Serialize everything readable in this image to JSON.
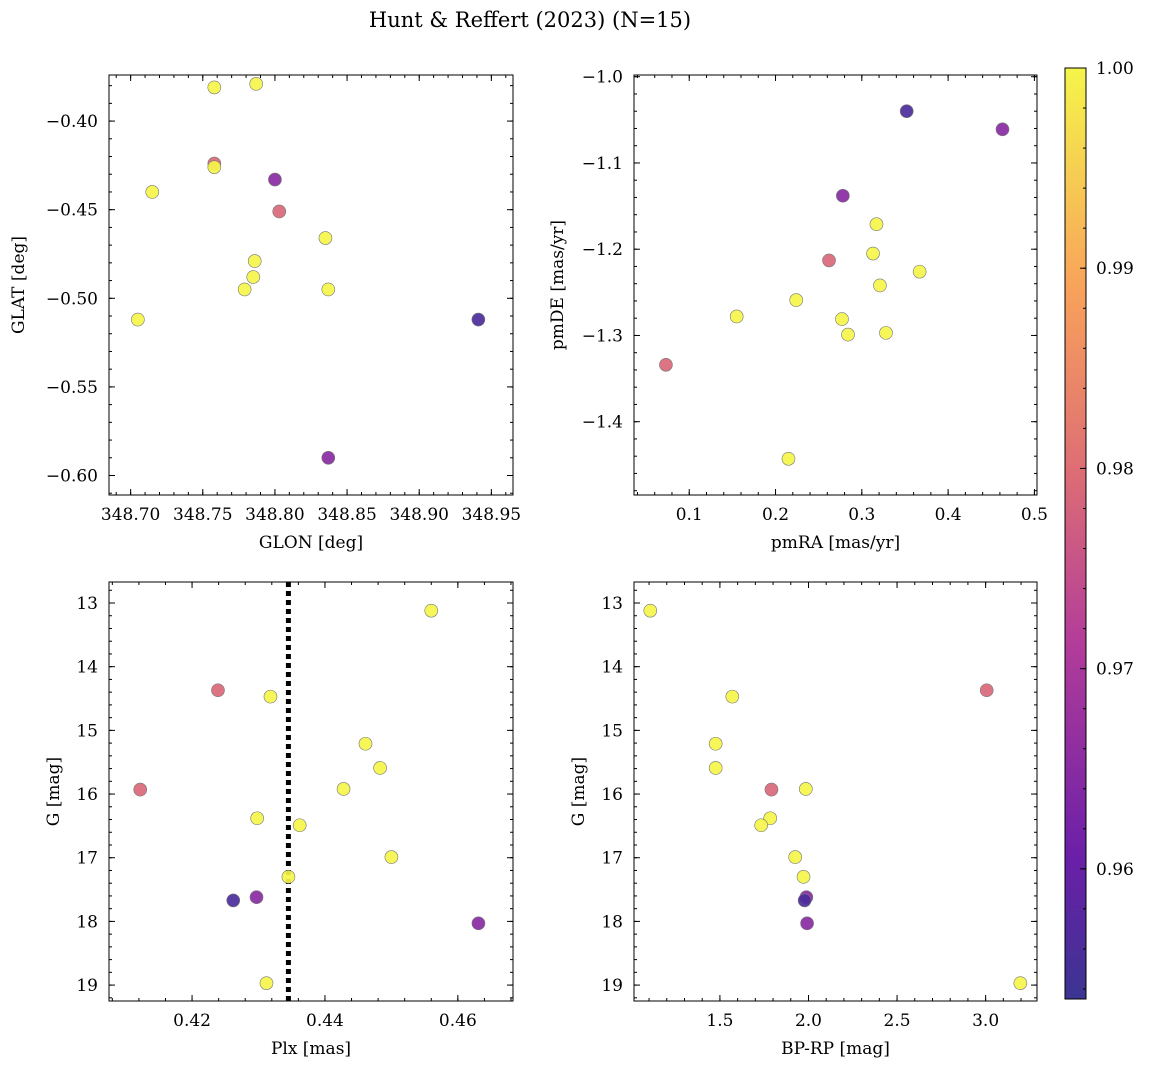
{
  "figure_title": "Hunt & Reffert (2023) (N=15)",
  "colorbar": {
    "min": 0.9535,
    "max": 1.0,
    "ticks": [
      0.96,
      0.97,
      0.98,
      0.99,
      1.0
    ],
    "tick_labels": [
      "0.96",
      "0.97",
      "0.98",
      "0.99",
      "1.00"
    ]
  },
  "reference_line": {
    "panel": "plx_g",
    "x": 0.4345,
    "style": "dotted"
  },
  "chart_data": [
    {
      "id": "glon_glat",
      "type": "scatter",
      "xlabel": "GLON [deg]",
      "ylabel": "GLAT [deg]",
      "xlim": [
        348.685,
        348.965
      ],
      "ylim": [
        -0.611,
        -0.374
      ],
      "y_inverted": false,
      "xticks": [
        348.7,
        348.75,
        348.8,
        348.85,
        348.9,
        348.95
      ],
      "xtick_labels": [
        "348.70",
        "348.75",
        "348.80",
        "348.85",
        "348.90",
        "348.95"
      ],
      "yticks": [
        -0.4,
        -0.45,
        -0.5,
        -0.55,
        -0.6
      ],
      "ytick_labels": [
        "−0.40",
        "−0.45",
        "−0.50",
        "−0.55",
        "−0.60"
      ],
      "points": [
        {
          "x": 348.758,
          "y": -0.381,
          "c": 1.0
        },
        {
          "x": 348.787,
          "y": -0.379,
          "c": 1.0
        },
        {
          "x": 348.758,
          "y": -0.424,
          "c": 0.979
        },
        {
          "x": 348.758,
          "y": -0.426,
          "c": 1.0
        },
        {
          "x": 348.715,
          "y": -0.44,
          "c": 1.0
        },
        {
          "x": 348.8,
          "y": -0.433,
          "c": 0.965
        },
        {
          "x": 348.803,
          "y": -0.451,
          "c": 0.979
        },
        {
          "x": 348.835,
          "y": -0.466,
          "c": 1.0
        },
        {
          "x": 348.786,
          "y": -0.479,
          "c": 1.0
        },
        {
          "x": 348.785,
          "y": -0.488,
          "c": 1.0
        },
        {
          "x": 348.779,
          "y": -0.495,
          "c": 1.0
        },
        {
          "x": 348.837,
          "y": -0.495,
          "c": 1.0
        },
        {
          "x": 348.705,
          "y": -0.512,
          "c": 1.0
        },
        {
          "x": 348.941,
          "y": -0.512,
          "c": 0.956
        },
        {
          "x": 348.837,
          "y": -0.59,
          "c": 0.965
        }
      ]
    },
    {
      "id": "pmra_pmde",
      "type": "scatter",
      "xlabel": "pmRA [mas/yr]",
      "ylabel": "pmDE [mas/yr]",
      "xlim": [
        0.036,
        0.503
      ],
      "ylim": [
        -1.485,
        -0.998
      ],
      "y_inverted": false,
      "xticks": [
        0.1,
        0.2,
        0.3,
        0.4,
        0.5
      ],
      "xtick_labels": [
        "0.1",
        "0.2",
        "0.3",
        "0.4",
        "0.5"
      ],
      "yticks": [
        -1.0,
        -1.1,
        -1.2,
        -1.3,
        -1.4
      ],
      "ytick_labels": [
        "−1.0",
        "−1.1",
        "−1.2",
        "−1.3",
        "−1.4"
      ],
      "points": [
        {
          "x": 0.352,
          "y": -1.04,
          "c": 0.956
        },
        {
          "x": 0.463,
          "y": -1.061,
          "c": 0.965
        },
        {
          "x": 0.278,
          "y": -1.138,
          "c": 0.965
        },
        {
          "x": 0.317,
          "y": -1.171,
          "c": 1.0
        },
        {
          "x": 0.313,
          "y": -1.205,
          "c": 1.0
        },
        {
          "x": 0.262,
          "y": -1.213,
          "c": 0.979
        },
        {
          "x": 0.367,
          "y": -1.226,
          "c": 1.0
        },
        {
          "x": 0.321,
          "y": -1.242,
          "c": 1.0
        },
        {
          "x": 0.224,
          "y": -1.259,
          "c": 1.0
        },
        {
          "x": 0.155,
          "y": -1.278,
          "c": 1.0
        },
        {
          "x": 0.277,
          "y": -1.281,
          "c": 1.0
        },
        {
          "x": 0.328,
          "y": -1.297,
          "c": 1.0
        },
        {
          "x": 0.284,
          "y": -1.299,
          "c": 1.0
        },
        {
          "x": 0.073,
          "y": -1.334,
          "c": 0.979
        },
        {
          "x": 0.215,
          "y": -1.443,
          "c": 1.0
        }
      ]
    },
    {
      "id": "plx_g",
      "type": "scatter",
      "xlabel": "Plx [mas]",
      "ylabel": "G [mag]",
      "xlim": [
        0.4075,
        0.4683
      ],
      "ylim": [
        12.67,
        19.25
      ],
      "y_inverted": true,
      "xticks": [
        0.42,
        0.44,
        0.46
      ],
      "xtick_labels": [
        "0.42",
        "0.44",
        "0.46"
      ],
      "yticks": [
        13,
        14,
        15,
        16,
        17,
        18,
        19
      ],
      "ytick_labels": [
        "13",
        "14",
        "15",
        "16",
        "17",
        "18",
        "19"
      ],
      "points": [
        {
          "x": 0.456,
          "y": 13.12,
          "c": 1.0
        },
        {
          "x": 0.4239,
          "y": 14.37,
          "c": 0.979
        },
        {
          "x": 0.4318,
          "y": 14.47,
          "c": 1.0
        },
        {
          "x": 0.4461,
          "y": 15.21,
          "c": 1.0
        },
        {
          "x": 0.4483,
          "y": 15.59,
          "c": 1.0
        },
        {
          "x": 0.4122,
          "y": 15.93,
          "c": 0.979
        },
        {
          "x": 0.4428,
          "y": 15.92,
          "c": 1.0
        },
        {
          "x": 0.4298,
          "y": 16.38,
          "c": 1.0
        },
        {
          "x": 0.4362,
          "y": 16.49,
          "c": 1.0
        },
        {
          "x": 0.45,
          "y": 16.99,
          "c": 1.0
        },
        {
          "x": 0.4345,
          "y": 17.3,
          "c": 1.0
        },
        {
          "x": 0.4297,
          "y": 17.62,
          "c": 0.965
        },
        {
          "x": 0.4262,
          "y": 17.67,
          "c": 0.956
        },
        {
          "x": 0.4631,
          "y": 18.03,
          "c": 0.965
        },
        {
          "x": 0.4312,
          "y": 18.97,
          "c": 1.0
        }
      ]
    },
    {
      "id": "bprp_g",
      "type": "scatter",
      "xlabel": "BP-RP [mag]",
      "ylabel": "G [mag]",
      "xlim": [
        1.015,
        3.29
      ],
      "ylim": [
        12.67,
        19.25
      ],
      "y_inverted": true,
      "xticks": [
        1.5,
        2.0,
        2.5,
        3.0
      ],
      "xtick_labels": [
        "1.5",
        "2.0",
        "2.5",
        "3.0"
      ],
      "yticks": [
        13,
        14,
        15,
        16,
        17,
        18,
        19
      ],
      "ytick_labels": [
        "13",
        "14",
        "15",
        "16",
        "17",
        "18",
        "19"
      ],
      "points": [
        {
          "x": 1.107,
          "y": 13.12,
          "c": 1.0
        },
        {
          "x": 3.006,
          "y": 14.37,
          "c": 0.979
        },
        {
          "x": 1.57,
          "y": 14.47,
          "c": 1.0
        },
        {
          "x": 1.476,
          "y": 15.21,
          "c": 1.0
        },
        {
          "x": 1.476,
          "y": 15.59,
          "c": 1.0
        },
        {
          "x": 1.791,
          "y": 15.93,
          "c": 0.979
        },
        {
          "x": 1.985,
          "y": 15.92,
          "c": 1.0
        },
        {
          "x": 1.784,
          "y": 16.38,
          "c": 1.0
        },
        {
          "x": 1.733,
          "y": 16.49,
          "c": 1.0
        },
        {
          "x": 1.925,
          "y": 16.99,
          "c": 1.0
        },
        {
          "x": 1.972,
          "y": 17.3,
          "c": 1.0
        },
        {
          "x": 1.988,
          "y": 17.62,
          "c": 0.965
        },
        {
          "x": 1.978,
          "y": 17.67,
          "c": 0.956
        },
        {
          "x": 1.992,
          "y": 18.03,
          "c": 0.965
        },
        {
          "x": 3.196,
          "y": 18.97,
          "c": 1.0
        }
      ]
    }
  ]
}
